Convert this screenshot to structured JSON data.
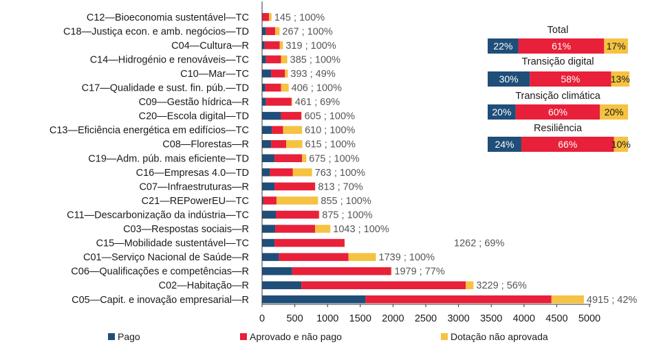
{
  "colors": {
    "pago": "#1f4e79",
    "aprovado": "#e8203a",
    "nao_aprovada": "#f5c242",
    "axis": "#333333"
  },
  "chart_data": [
    {
      "type": "bar",
      "orientation": "horizontal",
      "stacked": true,
      "categories": [
        "C12—Bioeconomia sustentável—TC",
        "C18—Justiça econ. e amb. negócios—TD",
        "C04—Cultura—R",
        "C14—Hidrogénio e renováveis—TC",
        "C10—Mar—TC",
        "C17—Qualidade e sust. fin. púb.—TD",
        "C09—Gestão hídrica—R",
        "C20—Escola digital—TD",
        "C13—Eficiência energética em edifícios—TC",
        "C08—Florestas—R",
        "C19—Adm. púb. mais eficiente—TD",
        "C16—Empresas 4.0—TD",
        "C07—Infraestruturas—R",
        "C21—REPowerEU—TC",
        "C11—Descarbonização da indústria—TC",
        "C03—Respostas sociais—R",
        "C15—Mobilidade sustentável—TC",
        "C01—Serviço Nacional de Saúde—R",
        "C06—Qualificações e competências—R",
        "C02—Habitação—R",
        "C05—Capit. e inovação empresarial—R"
      ],
      "series": [
        {
          "name": "Pago",
          "values": [
            5,
            60,
            40,
            60,
            140,
            50,
            60,
            290,
            150,
            140,
            190,
            120,
            190,
            20,
            210,
            200,
            190,
            260,
            460,
            600,
            1580
          ]
        },
        {
          "name": "Aprovado e não pago",
          "values": [
            100,
            140,
            230,
            230,
            210,
            240,
            390,
            310,
            170,
            230,
            420,
            350,
            620,
            200,
            660,
            610,
            1070,
            1060,
            1510,
            2510,
            2840
          ]
        },
        {
          "name": "Dotação não aprovada",
          "values": [
            40,
            67,
            49,
            95,
            43,
            116,
            11,
            5,
            290,
            245,
            65,
            293,
            3,
            635,
            5,
            233,
            2,
            419,
            9,
            119,
            495
          ]
        }
      ],
      "value_labels": [
        "145 ; 100%",
        "267 ; 100%",
        "319 ; 100%",
        "385 ; 100%",
        "393 ; 49%",
        "406 ; 100%",
        "461 ; 69%",
        "605 ; 100%",
        "610 ; 100%",
        "615 ; 100%",
        "675 ; 100%",
        "763 ; 100%",
        "813 ; 70%",
        "855 ; 100%",
        "875 ; 100%",
        "1043 ; 100%",
        "1262 ; 69%",
        "1739 ; 100%",
        "1979 ; 77%",
        "3229 ; 56%",
        "4915 ; 42%"
      ],
      "xlim": [
        0,
        5000
      ],
      "xticks": [
        0,
        500,
        1000,
        1500,
        2000,
        2500,
        3000,
        3500,
        4000,
        4500,
        5000
      ],
      "grid": false,
      "legend": {
        "placement": "bottom",
        "entries": [
          "Pago",
          "Aprovado e não pago",
          "Dotação não aprovada"
        ]
      }
    },
    {
      "type": "bar",
      "orientation": "horizontal",
      "stacked": true,
      "percent": true,
      "categories": [
        "Total",
        "Transição digital",
        "Transição climática",
        "Resiliência"
      ],
      "series": [
        {
          "name": "Pago",
          "values": [
            22,
            30,
            20,
            24
          ]
        },
        {
          "name": "Aprovado e não pago",
          "values": [
            61,
            58,
            60,
            66
          ]
        },
        {
          "name": "Dotação não aprovada",
          "values": [
            17,
            13,
            20,
            10
          ]
        }
      ],
      "labels": [
        [
          "22%",
          "61%",
          "17%"
        ],
        [
          "30%",
          "58%",
          "13%"
        ],
        [
          "20%",
          "60%",
          "20%"
        ],
        [
          "24%",
          "66%",
          "10%"
        ]
      ]
    }
  ]
}
